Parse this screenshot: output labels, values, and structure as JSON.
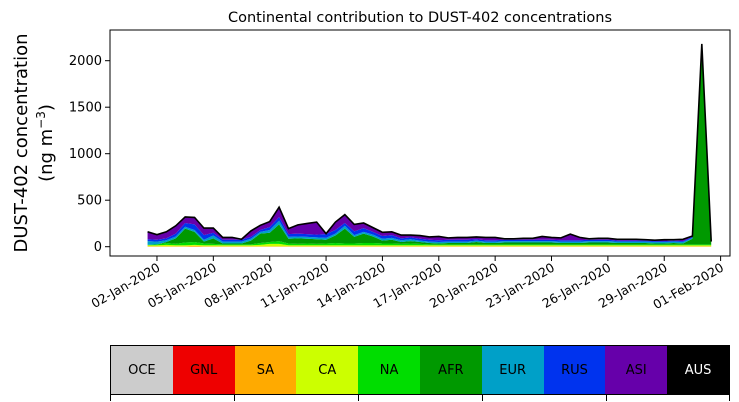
{
  "chart_data": {
    "type": "area",
    "title": "Continental contribution to DUST-402 concentrations",
    "ylabel_line1": "DUST-402 concentration",
    "ylabel_line2": "(ng m",
    "ylabel_unit_exp": "−3",
    "ylabel_close": ")",
    "ylim": [
      -100,
      2330
    ],
    "yticks": [
      0,
      500,
      1000,
      1500,
      2000
    ],
    "xlim": [
      "2019-12-30T12:00",
      "2020-02-01T12:00"
    ],
    "xticks": [
      {
        "date": "2020-01-02",
        "label": "02-Jan-2020"
      },
      {
        "date": "2020-01-05",
        "label": "05-Jan-2020"
      },
      {
        "date": "2020-01-08",
        "label": "08-Jan-2020"
      },
      {
        "date": "2020-01-11",
        "label": "11-Jan-2020"
      },
      {
        "date": "2020-01-14",
        "label": "14-Jan-2020"
      },
      {
        "date": "2020-01-17",
        "label": "17-Jan-2020"
      },
      {
        "date": "2020-01-20",
        "label": "20-Jan-2020"
      },
      {
        "date": "2020-01-23",
        "label": "23-Jan-2020"
      },
      {
        "date": "2020-01-26",
        "label": "26-Jan-2020"
      },
      {
        "date": "2020-01-29",
        "label": "29-Jan-2020"
      },
      {
        "date": "2020-02-01",
        "label": "01-Feb-2020"
      }
    ],
    "grid": false,
    "x": [
      "2020-01-01T12:00",
      "2020-01-02T00:00",
      "2020-01-02T12:00",
      "2020-01-03T00:00",
      "2020-01-03T12:00",
      "2020-01-04T00:00",
      "2020-01-04T12:00",
      "2020-01-05T00:00",
      "2020-01-05T12:00",
      "2020-01-06T00:00",
      "2020-01-06T12:00",
      "2020-01-07T00:00",
      "2020-01-07T12:00",
      "2020-01-08T00:00",
      "2020-01-08T12:00",
      "2020-01-09T00:00",
      "2020-01-09T12:00",
      "2020-01-10T00:00",
      "2020-01-10T12:00",
      "2020-01-11T00:00",
      "2020-01-11T12:00",
      "2020-01-12T00:00",
      "2020-01-12T12:00",
      "2020-01-13T00:00",
      "2020-01-13T12:00",
      "2020-01-14T00:00",
      "2020-01-14T12:00",
      "2020-01-15T00:00",
      "2020-01-15T12:00",
      "2020-01-16T00:00",
      "2020-01-16T12:00",
      "2020-01-17T00:00",
      "2020-01-17T12:00",
      "2020-01-18T00:00",
      "2020-01-18T12:00",
      "2020-01-19T00:00",
      "2020-01-19T12:00",
      "2020-01-20T00:00",
      "2020-01-20T12:00",
      "2020-01-21T00:00",
      "2020-01-21T12:00",
      "2020-01-22T00:00",
      "2020-01-22T12:00",
      "2020-01-23T00:00",
      "2020-01-23T12:00",
      "2020-01-24T00:00",
      "2020-01-24T12:00",
      "2020-01-25T00:00",
      "2020-01-25T12:00",
      "2020-01-26T00:00",
      "2020-01-26T12:00",
      "2020-01-27T00:00",
      "2020-01-27T12:00",
      "2020-01-28T00:00",
      "2020-01-28T12:00",
      "2020-01-29T00:00",
      "2020-01-29T12:00",
      "2020-01-30T00:00",
      "2020-01-30T12:00",
      "2020-01-31T00:00",
      "2020-01-31T12:00"
    ],
    "series": [
      {
        "name": "SA",
        "color": "#ffaa00",
        "values": [
          5,
          5,
          5,
          5,
          5,
          10,
          5,
          5,
          5,
          5,
          5,
          5,
          5,
          5,
          5,
          5,
          5,
          5,
          5,
          5,
          5,
          5,
          5,
          5,
          5,
          5,
          5,
          5,
          5,
          5,
          5,
          5,
          5,
          5,
          5,
          5,
          5,
          5,
          5,
          5,
          5,
          5,
          5,
          5,
          5,
          5,
          5,
          5,
          5,
          5,
          5,
          5,
          5,
          5,
          5,
          5,
          5,
          5,
          5,
          5,
          5
        ]
      },
      {
        "name": "CA",
        "color": "#ccff00",
        "values": [
          10,
          10,
          15,
          10,
          10,
          10,
          10,
          10,
          10,
          10,
          10,
          10,
          15,
          25,
          25,
          10,
          10,
          10,
          10,
          10,
          10,
          10,
          10,
          10,
          10,
          10,
          10,
          10,
          10,
          10,
          10,
          10,
          10,
          10,
          10,
          10,
          10,
          10,
          10,
          10,
          10,
          10,
          10,
          10,
          10,
          10,
          10,
          10,
          10,
          10,
          10,
          10,
          10,
          10,
          10,
          10,
          10,
          10,
          10,
          10,
          10
        ]
      },
      {
        "name": "NA",
        "color": "#00dd00",
        "values": [
          5,
          10,
          20,
          15,
          30,
          30,
          20,
          15,
          10,
          10,
          10,
          10,
          20,
          20,
          30,
          20,
          15,
          20,
          15,
          20,
          25,
          20,
          20,
          25,
          25,
          20,
          20,
          15,
          20,
          15,
          10,
          10,
          10,
          10,
          10,
          10,
          10,
          10,
          10,
          10,
          10,
          10,
          10,
          10,
          10,
          10,
          10,
          10,
          10,
          10,
          10,
          10,
          10,
          10,
          10,
          10,
          10,
          10,
          10,
          10,
          10
        ]
      },
      {
        "name": "AFR",
        "color": "#009900",
        "values": [
          0,
          0,
          10,
          60,
          150,
          110,
          20,
          60,
          10,
          10,
          10,
          40,
          100,
          100,
          180,
          50,
          60,
          50,
          50,
          40,
          80,
          160,
          70,
          100,
          70,
          30,
          40,
          20,
          25,
          20,
          15,
          10,
          15,
          15,
          15,
          25,
          15,
          15,
          20,
          20,
          20,
          20,
          20,
          20,
          15,
          15,
          15,
          20,
          20,
          20,
          15,
          15,
          15,
          15,
          10,
          10,
          15,
          10,
          60,
          2140,
          30
        ]
      },
      {
        "name": "EUR",
        "color": "#00a0c8",
        "values": [
          40,
          30,
          20,
          20,
          20,
          20,
          20,
          30,
          20,
          20,
          20,
          20,
          20,
          30,
          40,
          20,
          20,
          20,
          20,
          20,
          20,
          30,
          20,
          20,
          20,
          20,
          20,
          20,
          20,
          15,
          15,
          15,
          15,
          15,
          15,
          15,
          15,
          15,
          15,
          15,
          15,
          15,
          15,
          15,
          15,
          15,
          15,
          15,
          15,
          15,
          15,
          15,
          15,
          15,
          15,
          15,
          15,
          15,
          10,
          5,
          0
        ]
      },
      {
        "name": "RUS",
        "color": "#0033ee",
        "values": [
          20,
          20,
          20,
          30,
          40,
          60,
          50,
          30,
          20,
          20,
          20,
          20,
          20,
          30,
          40,
          30,
          30,
          30,
          30,
          40,
          40,
          30,
          40,
          40,
          30,
          30,
          30,
          20,
          20,
          20,
          20,
          20,
          20,
          20,
          20,
          15,
          15,
          15,
          15,
          15,
          15,
          15,
          15,
          15,
          15,
          15,
          15,
          15,
          15,
          15,
          10,
          10,
          10,
          10,
          10,
          10,
          10,
          10,
          10,
          5,
          0
        ]
      },
      {
        "name": "ASI",
        "color": "#6600aa",
        "values": [
          80,
          55,
          70,
          85,
          65,
          75,
          75,
          50,
          25,
          25,
          5,
          65,
          50,
          60,
          105,
          60,
          95,
          115,
          135,
          5,
          85,
          90,
          75,
          55,
          45,
          40,
          35,
          35,
          25,
          35,
          30,
          40,
          20,
          25,
          25,
          25,
          30,
          30,
          10,
          10,
          15,
          15,
          35,
          25,
          25,
          65,
          30,
          10,
          15,
          15,
          15,
          15,
          15,
          10,
          10,
          15,
          10,
          20,
          10,
          5,
          0
        ]
      }
    ],
    "legend_entries": [
      {
        "label": "OCE",
        "color": "#cccccc",
        "text_color": "#000000"
      },
      {
        "label": "GNL",
        "color": "#ee0000",
        "text_color": "#000000"
      },
      {
        "label": "SA",
        "color": "#ffaa00",
        "text_color": "#000000"
      },
      {
        "label": "CA",
        "color": "#ccff00",
        "text_color": "#000000"
      },
      {
        "label": "NA",
        "color": "#00dd00",
        "text_color": "#000000"
      },
      {
        "label": "AFR",
        "color": "#009900",
        "text_color": "#000000"
      },
      {
        "label": "EUR",
        "color": "#00a0c8",
        "text_color": "#000000"
      },
      {
        "label": "RUS",
        "color": "#0033ee",
        "text_color": "#000000"
      },
      {
        "label": "ASI",
        "color": "#6600aa",
        "text_color": "#000000"
      },
      {
        "label": "AUS",
        "color": "#000000",
        "text_color": "#ffffff"
      }
    ],
    "legend_placement": "bottom",
    "total_line_color": "#000000"
  }
}
